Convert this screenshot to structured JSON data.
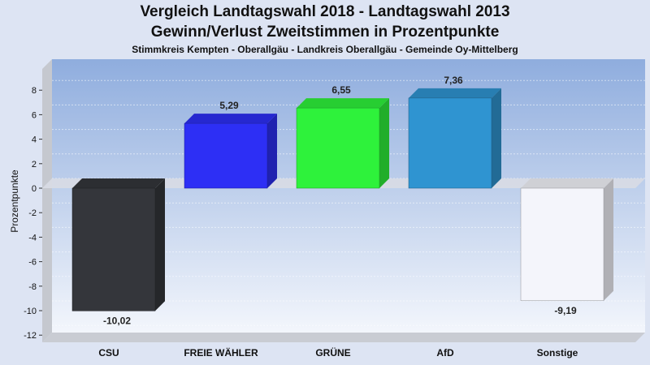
{
  "chart_data": {
    "type": "bar",
    "title": "Vergleich Landtagswahl 2018 - Landtagswahl 2013",
    "subtitle": "Gewinn/Verlust Zweitstimmen in Prozentpunkte",
    "subtitle2": "Stimmkreis Kempten - Oberallgäu - Landkreis Oberallgäu - Gemeinde Oy-Mittelberg",
    "ylabel": "Prozentpunkte",
    "xlabel": "",
    "categories": [
      "CSU",
      "FREIE WÄHLER",
      "GRÜNE",
      "AfD",
      "Sonstige"
    ],
    "values": [
      -10.02,
      5.29,
      6.55,
      7.36,
      -9.19
    ],
    "value_labels": [
      "-10,02",
      "5,29",
      "6,55",
      "7,36",
      "-9,19"
    ],
    "colors": [
      "#34363b",
      "#2d2ff5",
      "#2ef23b",
      "#2f94d1",
      "#f4f5fb"
    ],
    "ylim": [
      -12,
      8
    ],
    "yticks": [
      8,
      6,
      4,
      2,
      0,
      -2,
      -4,
      -6,
      -8,
      -10,
      -12
    ],
    "grid": true,
    "legend": "none"
  }
}
